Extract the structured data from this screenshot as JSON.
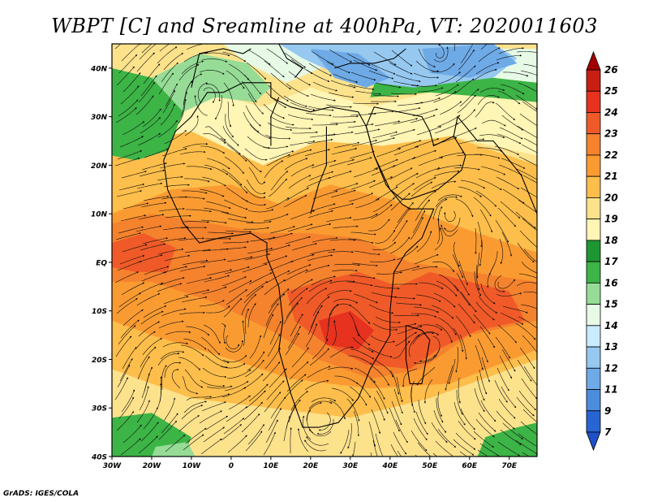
{
  "title": "WBPT [C] and Sreamline at 400hPa, VT: 2020011603",
  "credit": "GrADS: IGES/COLA",
  "map": {
    "lat_range": [
      -40,
      45
    ],
    "lon_range": [
      -30,
      77
    ],
    "lat_ticks": [
      {
        "value": 40,
        "label": "40N"
      },
      {
        "value": 30,
        "label": "30N"
      },
      {
        "value": 20,
        "label": "20N"
      },
      {
        "value": 10,
        "label": "10N"
      },
      {
        "value": 0,
        "label": "EQ"
      },
      {
        "value": -10,
        "label": "10S"
      },
      {
        "value": -20,
        "label": "20S"
      },
      {
        "value": -30,
        "label": "30S"
      },
      {
        "value": -40,
        "label": "40S"
      }
    ],
    "lon_ticks": [
      {
        "value": -30,
        "label": "30W"
      },
      {
        "value": -20,
        "label": "20W"
      },
      {
        "value": -10,
        "label": "10W"
      },
      {
        "value": 0,
        "label": "0"
      },
      {
        "value": 10,
        "label": "10E"
      },
      {
        "value": 20,
        "label": "20E"
      },
      {
        "value": 30,
        "label": "30E"
      },
      {
        "value": 40,
        "label": "40E"
      },
      {
        "value": 50,
        "label": "50E"
      },
      {
        "value": 60,
        "label": "60E"
      },
      {
        "value": 70,
        "label": "70E"
      }
    ]
  },
  "colorbar": {
    "labels": [
      "26",
      "25",
      "24",
      "23",
      "22",
      "21",
      "20",
      "19",
      "18",
      "17",
      "16",
      "15",
      "14",
      "13",
      "12",
      "11",
      "9",
      "7"
    ],
    "colors": [
      "#a00000",
      "#c81e14",
      "#e6321e",
      "#f05a28",
      "#f5822d",
      "#fa9b32",
      "#fdbe4b",
      "#fde28c",
      "#fff5b4",
      "#1e9632",
      "#3cb446",
      "#96dc96",
      "#e6fae6",
      "#c8ebff",
      "#96c8f0",
      "#6eaae6",
      "#4b8cdc",
      "#2864d2",
      "#1e50c8"
    ]
  },
  "field_regions": [
    {
      "color": "#fde28c",
      "points": [
        [
          -30,
          45
        ],
        [
          77,
          45
        ],
        [
          77,
          -40
        ],
        [
          -30,
          -40
        ]
      ]
    },
    {
      "color": "#fdbe4b",
      "points": [
        [
          -30,
          24
        ],
        [
          -10,
          27
        ],
        [
          8,
          20
        ],
        [
          22,
          25
        ],
        [
          38,
          24
        ],
        [
          55,
          26
        ],
        [
          77,
          20
        ],
        [
          77,
          -20
        ],
        [
          50,
          -28
        ],
        [
          30,
          -32
        ],
        [
          10,
          -30
        ],
        [
          -10,
          -28
        ],
        [
          -30,
          -22
        ]
      ]
    },
    {
      "color": "#fa9b32",
      "points": [
        [
          -30,
          10
        ],
        [
          -15,
          15
        ],
        [
          0,
          16
        ],
        [
          12,
          12
        ],
        [
          25,
          16
        ],
        [
          40,
          13
        ],
        [
          55,
          8
        ],
        [
          77,
          2
        ],
        [
          77,
          -18
        ],
        [
          55,
          -25
        ],
        [
          35,
          -26
        ],
        [
          15,
          -24
        ],
        [
          0,
          -20
        ],
        [
          -20,
          -15
        ],
        [
          -30,
          -12
        ]
      ]
    },
    {
      "color": "#f5822d",
      "points": [
        [
          -30,
          8
        ],
        [
          -20,
          10
        ],
        [
          -5,
          8
        ],
        [
          8,
          6
        ],
        [
          20,
          6
        ],
        [
          32,
          5
        ],
        [
          45,
          0
        ],
        [
          60,
          -2
        ],
        [
          77,
          -4
        ],
        [
          77,
          -12
        ],
        [
          60,
          -15
        ],
        [
          48,
          -22
        ],
        [
          35,
          -24
        ],
        [
          22,
          -20
        ],
        [
          10,
          -14
        ],
        [
          -5,
          -8
        ],
        [
          -20,
          -4
        ],
        [
          -30,
          -4
        ]
      ]
    },
    {
      "color": "#f05a28",
      "points": [
        [
          -30,
          4
        ],
        [
          -22,
          6
        ],
        [
          -14,
          3
        ],
        [
          -16,
          -2
        ],
        [
          -24,
          -2
        ],
        [
          -30,
          -1
        ]
      ]
    },
    {
      "color": "#f05a28",
      "points": [
        [
          14,
          -6
        ],
        [
          22,
          -4
        ],
        [
          32,
          -2
        ],
        [
          42,
          -5
        ],
        [
          50,
          -2
        ],
        [
          60,
          -4
        ],
        [
          70,
          -6
        ],
        [
          74,
          -12
        ],
        [
          62,
          -14
        ],
        [
          52,
          -18
        ],
        [
          45,
          -22
        ],
        [
          34,
          -21
        ],
        [
          24,
          -17
        ],
        [
          16,
          -12
        ]
      ]
    },
    {
      "color": "#e6321e",
      "points": [
        [
          22,
          -12
        ],
        [
          30,
          -10
        ],
        [
          36,
          -14
        ],
        [
          32,
          -18
        ],
        [
          24,
          -17
        ]
      ]
    },
    {
      "color": "#fff5b4",
      "points": [
        [
          -30,
          34
        ],
        [
          -10,
          36
        ],
        [
          8,
          32
        ],
        [
          20,
          36
        ],
        [
          35,
          32
        ],
        [
          50,
          35
        ],
        [
          65,
          34
        ],
        [
          77,
          33
        ],
        [
          77,
          22
        ],
        [
          55,
          26
        ],
        [
          38,
          24
        ],
        [
          22,
          25
        ],
        [
          8,
          20
        ],
        [
          -10,
          27
        ],
        [
          -30,
          24
        ]
      ]
    },
    {
      "color": "#3cb446",
      "points": [
        [
          -30,
          40
        ],
        [
          -20,
          38
        ],
        [
          -12,
          31
        ],
        [
          -16,
          23
        ],
        [
          -24,
          21
        ],
        [
          -30,
          22
        ]
      ]
    },
    {
      "color": "#96dc96",
      "points": [
        [
          -20,
          38
        ],
        [
          -8,
          43
        ],
        [
          4,
          41
        ],
        [
          10,
          36
        ],
        [
          6,
          33
        ],
        [
          -4,
          34
        ],
        [
          -12,
          31
        ]
      ]
    },
    {
      "color": "#3cb446",
      "points": [
        [
          38,
          42
        ],
        [
          52,
          40
        ],
        [
          66,
          38
        ],
        [
          77,
          37
        ],
        [
          77,
          33
        ],
        [
          65,
          34
        ],
        [
          50,
          35
        ],
        [
          35,
          34
        ]
      ]
    },
    {
      "color": "#e6fae6",
      "points": [
        [
          -2,
          45
        ],
        [
          20,
          45
        ],
        [
          42,
          45
        ],
        [
          60,
          44
        ],
        [
          77,
          44
        ],
        [
          77,
          37
        ],
        [
          66,
          38
        ],
        [
          52,
          40
        ],
        [
          38,
          41
        ],
        [
          28,
          42
        ],
        [
          14,
          37
        ],
        [
          4,
          41
        ]
      ]
    },
    {
      "color": "#96c8f0",
      "points": [
        [
          12,
          45
        ],
        [
          40,
          45
        ],
        [
          66,
          45
        ],
        [
          72,
          42
        ],
        [
          66,
          38
        ],
        [
          56,
          37
        ],
        [
          46,
          36
        ],
        [
          36,
          37
        ],
        [
          26,
          39
        ],
        [
          18,
          42
        ]
      ]
    },
    {
      "color": "#6eaae6",
      "points": [
        [
          20,
          44
        ],
        [
          32,
          43
        ],
        [
          40,
          38
        ],
        [
          34,
          36
        ],
        [
          26,
          38
        ]
      ]
    },
    {
      "color": "#6eaae6",
      "points": [
        [
          48,
          44
        ],
        [
          66,
          45
        ],
        [
          72,
          41
        ],
        [
          60,
          38
        ],
        [
          50,
          39
        ]
      ]
    },
    {
      "color": "#3cb446",
      "points": [
        [
          -30,
          -32
        ],
        [
          -20,
          -31
        ],
        [
          -10,
          -36
        ],
        [
          -12,
          -40
        ],
        [
          -30,
          -40
        ]
      ]
    },
    {
      "color": "#96dc96",
      "points": [
        [
          -19,
          -38
        ],
        [
          -11,
          -37
        ],
        [
          -9,
          -40
        ],
        [
          -20,
          -40
        ]
      ]
    },
    {
      "color": "#3cb446",
      "points": [
        [
          64,
          -36
        ],
        [
          72,
          -34
        ],
        [
          77,
          -33
        ],
        [
          77,
          -40
        ],
        [
          62,
          -40
        ]
      ]
    }
  ]
}
